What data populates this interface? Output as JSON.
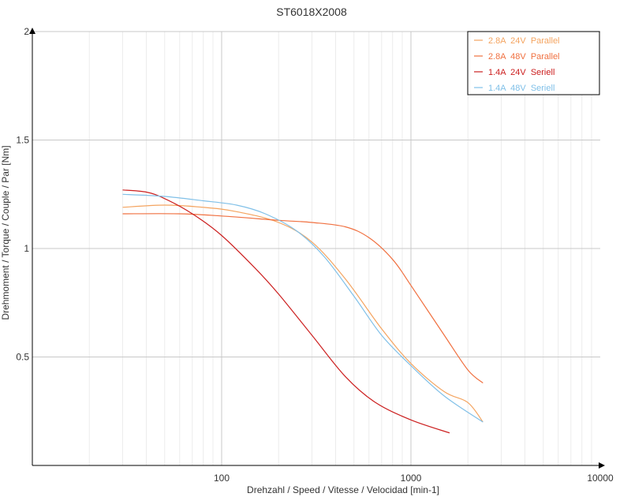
{
  "chart_data": {
    "type": "line",
    "title": "ST6018X2008",
    "xlabel": "Drehzahl / Speed / Vitesse / Velocidad [min-1]",
    "ylabel": "Drehmoment / Torque / Couple / Par [Nm]",
    "x_scale": "log",
    "xlim": [
      10,
      10000
    ],
    "ylim": [
      0,
      2
    ],
    "x_ticks": [
      100,
      1000,
      10000
    ],
    "x_tick_labels": [
      "100",
      "1000",
      "10000"
    ],
    "y_ticks": [
      0.5,
      1,
      1.5,
      2
    ],
    "y_tick_labels": [
      "0.5",
      "1",
      "1.5",
      "2"
    ],
    "grid": true,
    "legend_position": "top-right",
    "series": [
      {
        "name": "2.8A  24V  Parallel",
        "color": "#f4a460",
        "x": [
          30,
          50,
          80,
          120,
          200,
          300,
          450,
          700,
          1000,
          1500,
          2000,
          2400
        ],
        "y": [
          1.19,
          1.2,
          1.19,
          1.17,
          1.12,
          1.03,
          0.86,
          0.63,
          0.47,
          0.34,
          0.29,
          0.2
        ]
      },
      {
        "name": "2.8A  48V  Parallel",
        "color": "#f07040",
        "x": [
          30,
          60,
          100,
          200,
          300,
          450,
          600,
          800,
          1000,
          1500,
          2000,
          2400
        ],
        "y": [
          1.16,
          1.16,
          1.15,
          1.13,
          1.12,
          1.1,
          1.05,
          0.95,
          0.83,
          0.6,
          0.44,
          0.38
        ]
      },
      {
        "name": "1.4A  24V  Seriell",
        "color": "#cc2020",
        "x": [
          30,
          40,
          50,
          70,
          100,
          150,
          200,
          300,
          450,
          650,
          1000,
          1600
        ],
        "y": [
          1.27,
          1.26,
          1.23,
          1.16,
          1.06,
          0.91,
          0.79,
          0.6,
          0.41,
          0.29,
          0.21,
          0.15
        ]
      },
      {
        "name": "1.4A  48V  Seriell",
        "color": "#80c0e8",
        "x": [
          30,
          50,
          80,
          120,
          170,
          250,
          350,
          500,
          700,
          1000,
          1500,
          2400
        ],
        "y": [
          1.25,
          1.24,
          1.22,
          1.2,
          1.16,
          1.08,
          0.96,
          0.78,
          0.6,
          0.46,
          0.32,
          0.2
        ]
      }
    ]
  }
}
